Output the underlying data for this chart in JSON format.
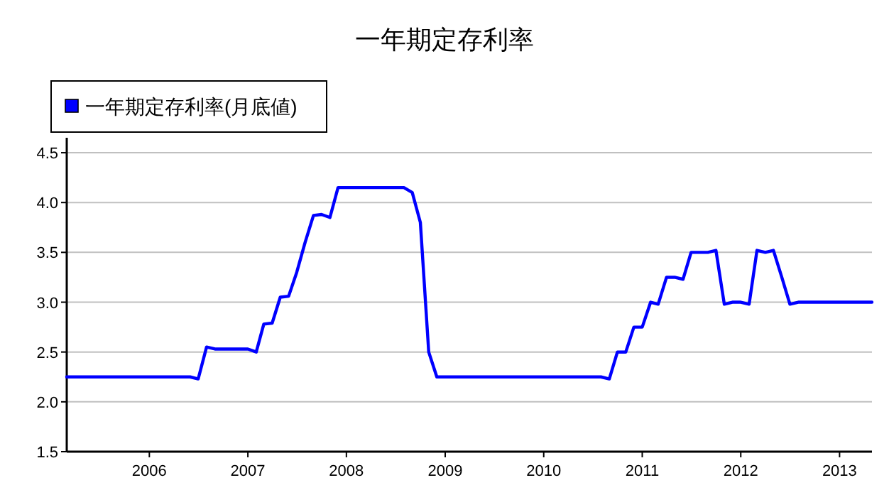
{
  "chart_data": {
    "type": "line",
    "title": "一年期定存利率",
    "x": [
      "2005-03",
      "2006-06",
      "2006-07",
      "2006-08",
      "2006-09",
      "2007-01",
      "2007-02",
      "2007-03",
      "2007-04",
      "2007-05",
      "2007-06",
      "2007-07",
      "2007-08",
      "2007-09",
      "2007-10",
      "2007-11",
      "2007-12",
      "2008-01",
      "2008-08",
      "2008-09",
      "2008-10",
      "2008-11",
      "2008-12",
      "2010-08",
      "2010-09",
      "2010-10",
      "2010-11",
      "2010-12",
      "2011-01",
      "2011-02",
      "2011-03",
      "2011-04",
      "2011-05",
      "2011-06",
      "2011-07",
      "2011-09",
      "2011-10",
      "2011-11",
      "2011-12",
      "2012-01",
      "2012-02",
      "2012-03",
      "2012-04",
      "2012-05",
      "2012-06",
      "2012-07",
      "2012-08",
      "2013-05"
    ],
    "series": [
      {
        "name": "一年期定存利率(月底値)",
        "color": "#0000ff",
        "values": [
          2.25,
          2.25,
          2.23,
          2.55,
          2.53,
          2.53,
          2.5,
          2.78,
          2.79,
          3.05,
          3.06,
          3.3,
          3.6,
          3.87,
          3.88,
          3.85,
          4.15,
          4.15,
          4.15,
          4.1,
          3.8,
          2.5,
          2.25,
          2.25,
          2.23,
          2.5,
          2.5,
          2.75,
          2.75,
          3.0,
          2.98,
          3.25,
          3.25,
          3.23,
          3.5,
          3.5,
          3.52,
          2.98,
          3.0,
          3.0,
          2.98,
          3.52,
          3.5,
          3.52,
          3.25,
          2.98,
          3.0,
          3.0
        ]
      }
    ],
    "xlim": [
      "2005-03",
      "2013-05"
    ],
    "xticks": [
      "2006",
      "2007",
      "2008",
      "2009",
      "2010",
      "2011",
      "2012",
      "2013"
    ],
    "ylim": [
      1.5,
      4.65
    ],
    "yticks": [
      {
        "value": 1.5,
        "label": "1.5"
      },
      {
        "value": 2,
        "label": "2.0"
      },
      {
        "value": 2.5,
        "label": "2.5"
      },
      {
        "value": 3,
        "label": "3.0"
      },
      {
        "value": 3.5,
        "label": "3.5"
      },
      {
        "value": 4,
        "label": "4.0"
      },
      {
        "value": 4.5,
        "label": "4.5"
      }
    ],
    "grid": "y",
    "legend": "top left",
    "marker": "none",
    "line_style": "solid"
  }
}
